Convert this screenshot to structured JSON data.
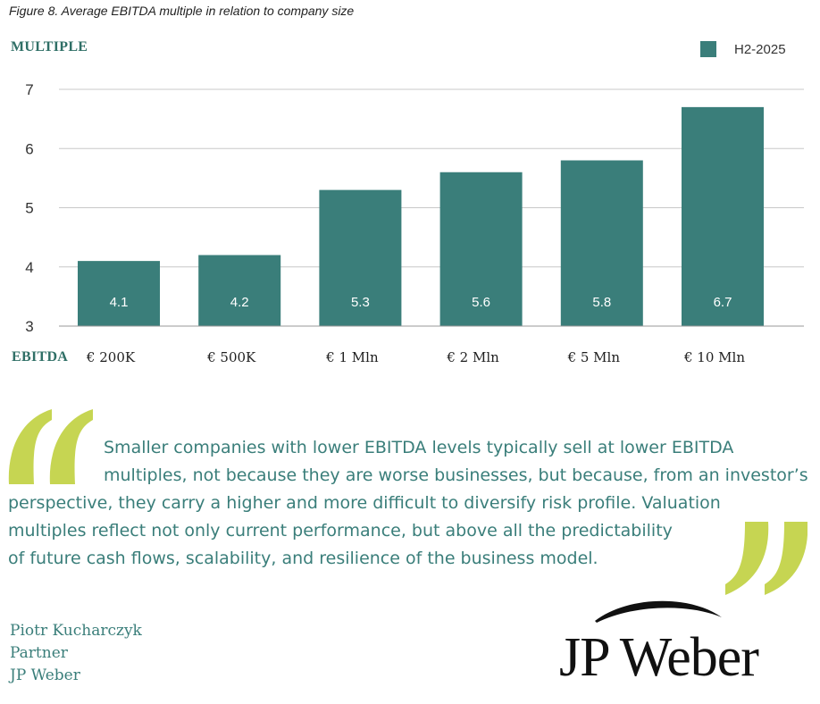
{
  "figure_title": "Figure 8. Average EBITDA multiple in relation to company size",
  "colors": {
    "bar": "#3a7e7a",
    "accent": "#c6d552",
    "grid": "#c8c8c8",
    "text": "#3a7e7a"
  },
  "chart_data": {
    "type": "bar",
    "title": "Figure 8. Average EBITDA multiple in relation to company size",
    "ylabel": "MULTIPLE",
    "xlabel": "EBITDA",
    "categories": [
      "€ 200K",
      "€ 500K",
      "€ 1 Mln",
      "€ 2 Mln",
      "€ 5 Mln",
      "€ 10 Mln"
    ],
    "series": [
      {
        "name": "H2-2025",
        "values": [
          4.1,
          4.2,
          5.3,
          5.6,
          5.8,
          6.7
        ]
      }
    ],
    "value_labels": [
      "4.1",
      "4.2",
      "5.3",
      "5.6",
      "5.8",
      "6.7"
    ],
    "ylim": [
      3,
      7
    ],
    "yticks": [
      3,
      4,
      5,
      6,
      7
    ],
    "grid": true,
    "legend_position": "top-right"
  },
  "quote": {
    "lines": [
      "Smaller companies with lower EBITDA levels typically sell at lower EBITDA",
      "multiples, not because they are worse businesses, but because, from an investor’s",
      "perspective, they carry a higher and more difficult to diversify risk profile. Valuation",
      "multiples reflect not only current performance, but above all the predictability",
      "of future cash flows, scalability, and resilience of the business model."
    ]
  },
  "signature": {
    "name": "Piotr Kucharczyk",
    "role": "Partner",
    "company": "JP Weber"
  },
  "logo": {
    "text": "JP Weber",
    "icon": "arc-swoosh-icon"
  }
}
